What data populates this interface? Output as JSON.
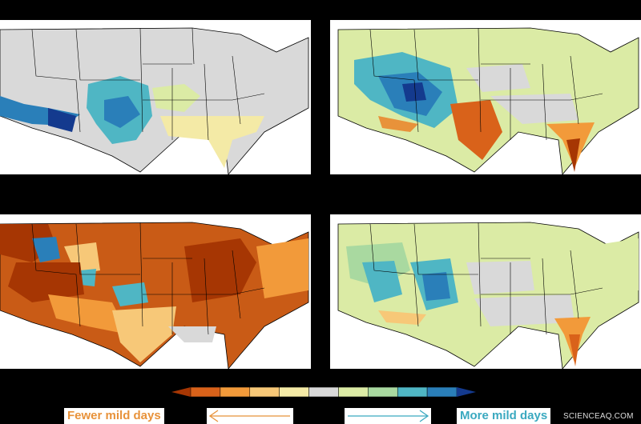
{
  "legend": {
    "fewer_label": "Fewer mild days",
    "more_label": "More mild days",
    "fewer_color": "#e8923a",
    "more_color": "#3aa9c0",
    "colorbar_colors": [
      "#a63603",
      "#d9621a",
      "#f29a3a",
      "#f7c878",
      "#f4eaa6",
      "#d9d9d9",
      "#dbeba5",
      "#a9d9a0",
      "#4fb6c4",
      "#2a7fb9",
      "#143a8e"
    ]
  },
  "watermark": "SCIENCEAQ.COM",
  "panels": [
    {
      "id": "top-left",
      "base_color": "#d9d9d9"
    },
    {
      "id": "top-right",
      "base_color": "#dbeba5"
    },
    {
      "id": "bottom-left",
      "base_color": "#c95b16"
    },
    {
      "id": "bottom-right",
      "base_color": "#dbeba5"
    }
  ]
}
